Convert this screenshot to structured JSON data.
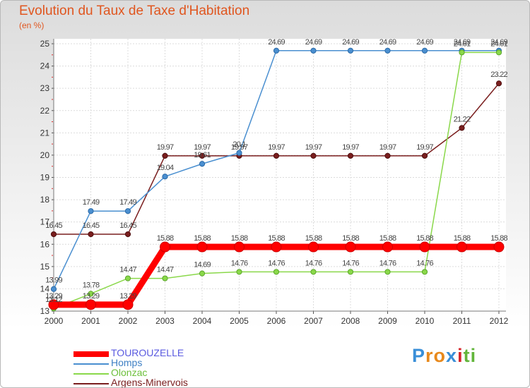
{
  "chart_data": {
    "type": "line",
    "title": "Evolution du Taux de Taxe d'Habitation",
    "ylabel": "(en %)",
    "ylim": [
      13,
      25
    ],
    "yticks": [
      13,
      14,
      15,
      16,
      17,
      18,
      19,
      20,
      21,
      22,
      23,
      24,
      25
    ],
    "categories": [
      "2000",
      "2001",
      "2002",
      "2003",
      "2004",
      "2005",
      "2006",
      "2007",
      "2008",
      "2009",
      "2010",
      "2011",
      "2012"
    ],
    "grid": true,
    "legend_position": "bottom-left",
    "series": [
      {
        "name": "TOUROUZELLE",
        "color": "#ff0000",
        "values": [
          13.29,
          13.29,
          13.29,
          15.88,
          15.88,
          15.88,
          15.88,
          15.88,
          15.88,
          15.88,
          15.88,
          15.88,
          15.88
        ],
        "labels": [
          "13.29",
          "13.29",
          "13.29",
          "15.88",
          "15.88",
          "15.88",
          "15.88",
          "15.88",
          "15.88",
          "15.88",
          "15.88",
          "15.88",
          "15.88"
        ]
      },
      {
        "name": "Homps",
        "color": "#4a8fd0",
        "values": [
          13.99,
          17.49,
          17.49,
          19.04,
          19.61,
          20.1,
          24.69,
          24.69,
          24.69,
          24.69,
          24.69,
          24.69,
          24.69
        ],
        "labels": [
          "13.99",
          "17.49",
          "17.49",
          "19.04",
          "19.61",
          "20.1",
          "24.69",
          "24.69",
          "24.69",
          "24.69",
          "24.69",
          "24.69",
          "24.69"
        ]
      },
      {
        "name": "Olonzac",
        "color": "#8ad84a",
        "values": [
          13.12,
          13.78,
          14.47,
          14.47,
          14.69,
          14.76,
          14.76,
          14.76,
          14.76,
          14.76,
          14.76,
          24.61,
          24.61
        ],
        "labels": [
          "13.12",
          "13.78",
          "14.47",
          "14.47",
          "14.69",
          "14.76",
          "14.76",
          "14.76",
          "14.76",
          "14.76",
          "14.76",
          "24.61",
          "24.61"
        ]
      },
      {
        "name": "Argens-Minervois",
        "color": "#7a1e1e",
        "values": [
          16.45,
          16.45,
          16.45,
          19.97,
          19.97,
          19.97,
          19.97,
          19.97,
          19.97,
          19.97,
          19.97,
          21.22,
          23.22
        ],
        "labels": [
          "16.45",
          "16.45",
          "16.45",
          "19.97",
          "19.97",
          "19.97",
          "19.97",
          "19.97",
          "19.97",
          "19.97",
          "19.97",
          "21.22",
          "23.22"
        ]
      }
    ]
  },
  "logo": {
    "letters": [
      "P",
      "r",
      "o",
      "x",
      "i",
      "t",
      "i"
    ],
    "colors": [
      "#3a8fd8",
      "#e8891c",
      "#e8891c",
      "#3a8fd8",
      "#d6262b",
      "#62b53a",
      "#62b53a"
    ]
  }
}
